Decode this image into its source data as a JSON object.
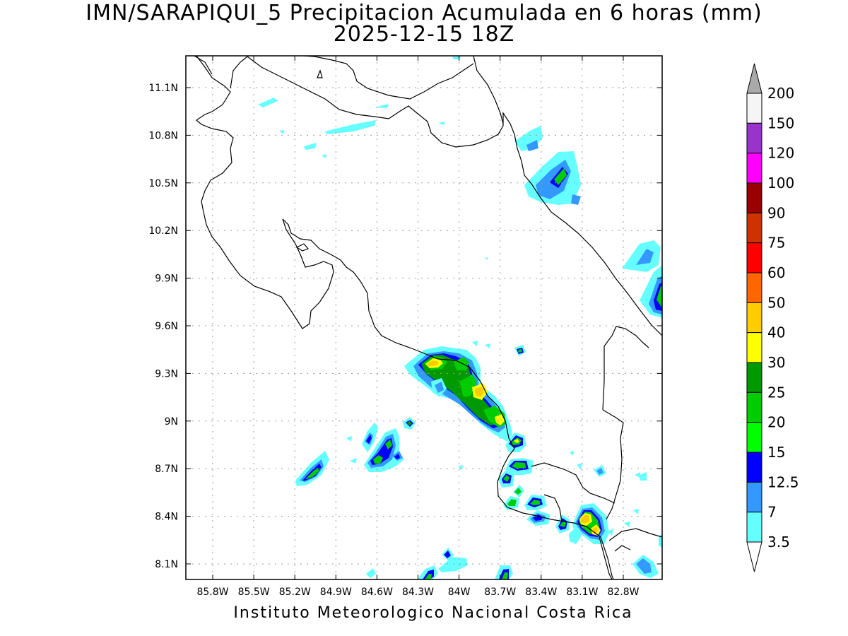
{
  "title": {
    "line1": "IMN/SARAPIQUI_5 Precipitacion Acumulada en 6 horas (mm)",
    "line2": "2025-12-15 18Z"
  },
  "map": {
    "lon_ticks": [
      "85.8W",
      "85.5W",
      "85.2W",
      "84.9W",
      "84.6W",
      "84.3W",
      "84W",
      "83.7W",
      "83.4W",
      "83.1W",
      "82.8W"
    ],
    "lat_ticks": [
      "11.1N",
      "10.8N",
      "10.5N",
      "10.2N",
      "9.9N",
      "9.6N",
      "9.3N",
      "9N",
      "8.7N",
      "8.4N",
      "8.1N"
    ],
    "grid": "dotted"
  },
  "legend": {
    "labels": [
      "200",
      "150",
      "120",
      "100",
      "90",
      "75",
      "60",
      "50",
      "40",
      "30",
      "25",
      "20",
      "15",
      "12.5",
      "7",
      "3.5"
    ],
    "colors": [
      "#f5f5f5",
      "#9a33cc",
      "#ff00ff",
      "#990000",
      "#cc3300",
      "#ff0000",
      "#ff6600",
      "#ffcc00",
      "#ffff00",
      "#009900",
      "#00cc00",
      "#00ff00",
      "#0000ff",
      "#3399ff",
      "#66ffff"
    ],
    "over_color": "#aaaaaa",
    "under_color": "#ffffff"
  },
  "footer": "Instituto Meteorologico Nacional Costa Rica"
}
